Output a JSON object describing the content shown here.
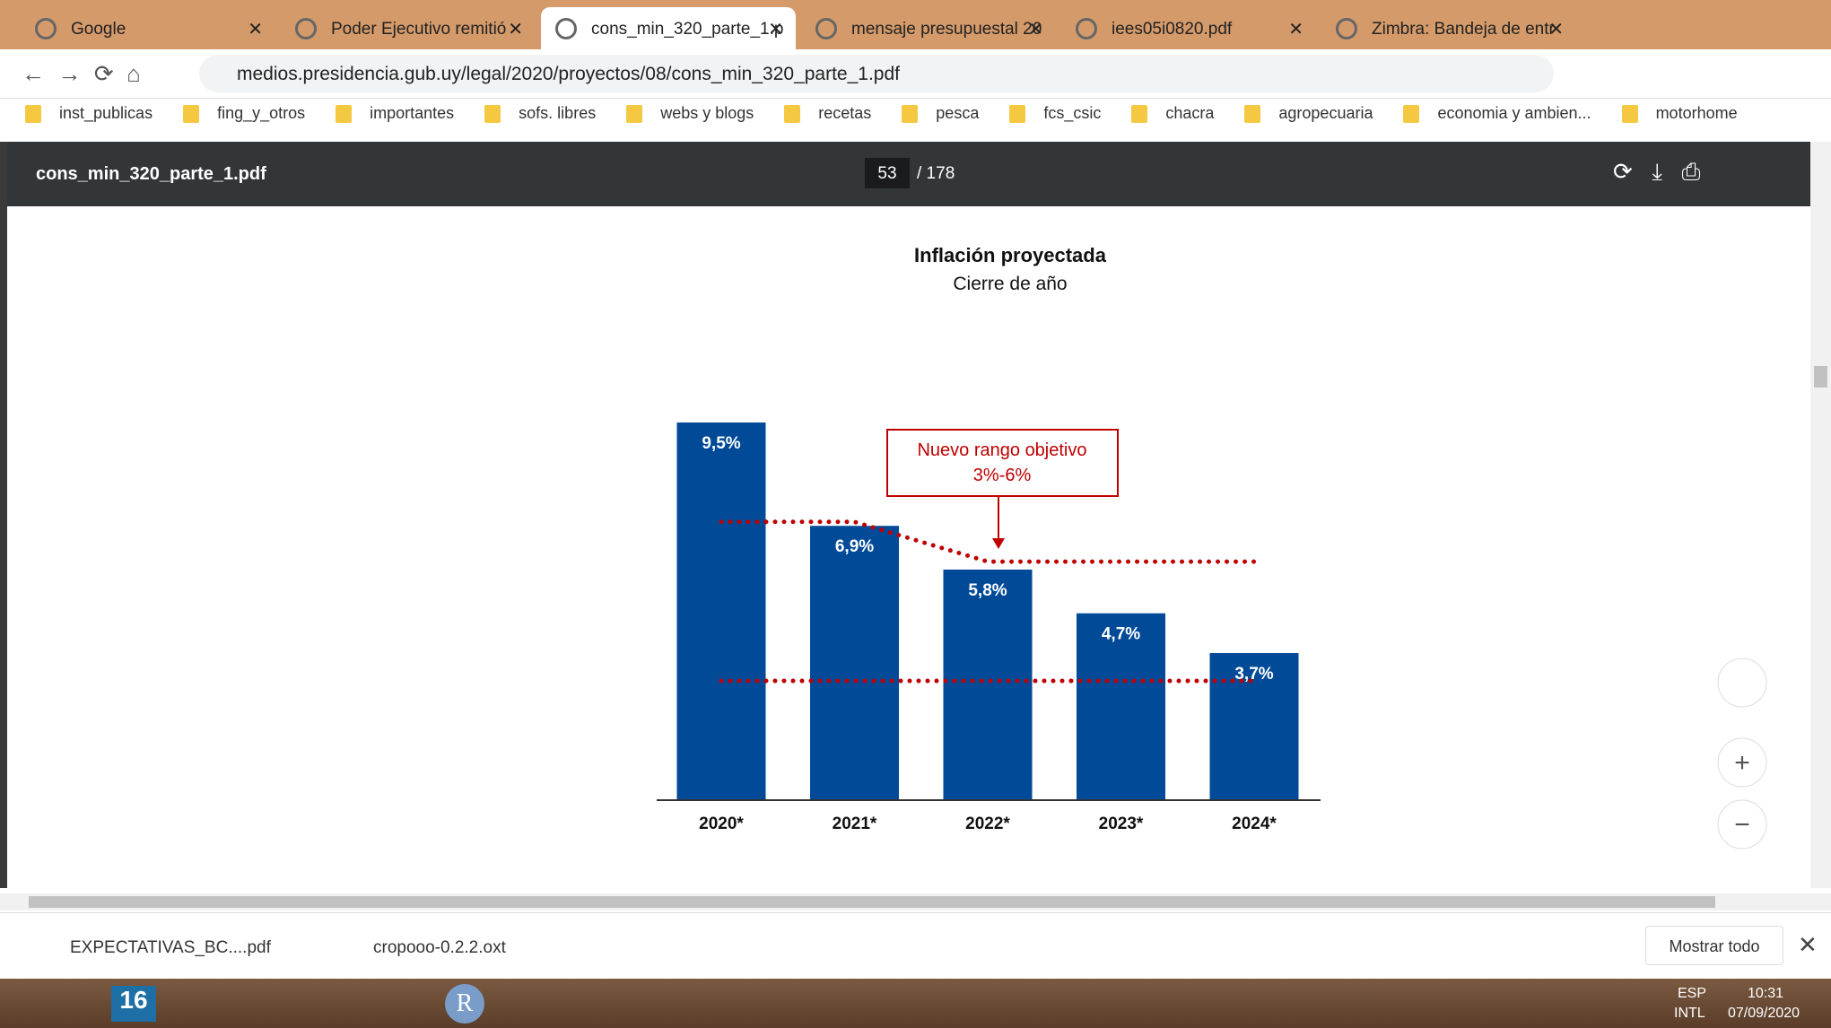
{
  "tabs": [
    "Google",
    "Poder Ejecutivo remitió",
    "cons_min_320_parte_1.p",
    "mensaje presupuestal 20",
    "iees05i0820.pdf",
    "Zimbra: Bandeja de entr"
  ],
  "url": "medios.presidencia.gub.uy/legal/2020/proyectos/08/cons_min_320_parte_1.pdf",
  "bookmarks": [
    "inst_publicas",
    "fing_y_otros",
    "importantes",
    "sofs. libres",
    "webs y blogs",
    "recetas",
    "pesca",
    "fcs_csic",
    "chacra",
    "agropecuaria",
    "economia y ambien...",
    "motorhome"
  ],
  "pdf_viewer": {
    "filename": "cons_min_320_parte_1.pdf",
    "page": "53",
    "total": "/ 178"
  },
  "chart_data": {
    "type": "bar",
    "title": "Inflación proyectada",
    "subtitle": "Cierre de año",
    "categories": [
      "2020*",
      "2021*",
      "2022*",
      "2023*",
      "2024*"
    ],
    "values": [
      9.5,
      6.9,
      5.8,
      4.7,
      3.7
    ],
    "value_labels": [
      "9,5%",
      "6,9%",
      "5,8%",
      "4,7%",
      "3,7%"
    ],
    "color": "#004a97",
    "reference_lines": [
      {
        "values": [
          7,
          7,
          6,
          6,
          6
        ],
        "color": "#c00000"
      },
      {
        "values": [
          3,
          3,
          3,
          3,
          3
        ],
        "color": "#c00000"
      }
    ],
    "annotation": [
      "Nuevo rango objetivo",
      "3%-6%"
    ]
  },
  "downloads": [
    "EXPECTATIVAS_BC....pdf",
    "cropooo-0.2.2.oxt"
  ],
  "show_all": "Mostrar todo",
  "taskbar": {
    "icons": [
      "16",
      "R"
    ],
    "lang": "ESP",
    "layout": "INTL",
    "time": "10:31",
    "date": "07/09/2020"
  }
}
